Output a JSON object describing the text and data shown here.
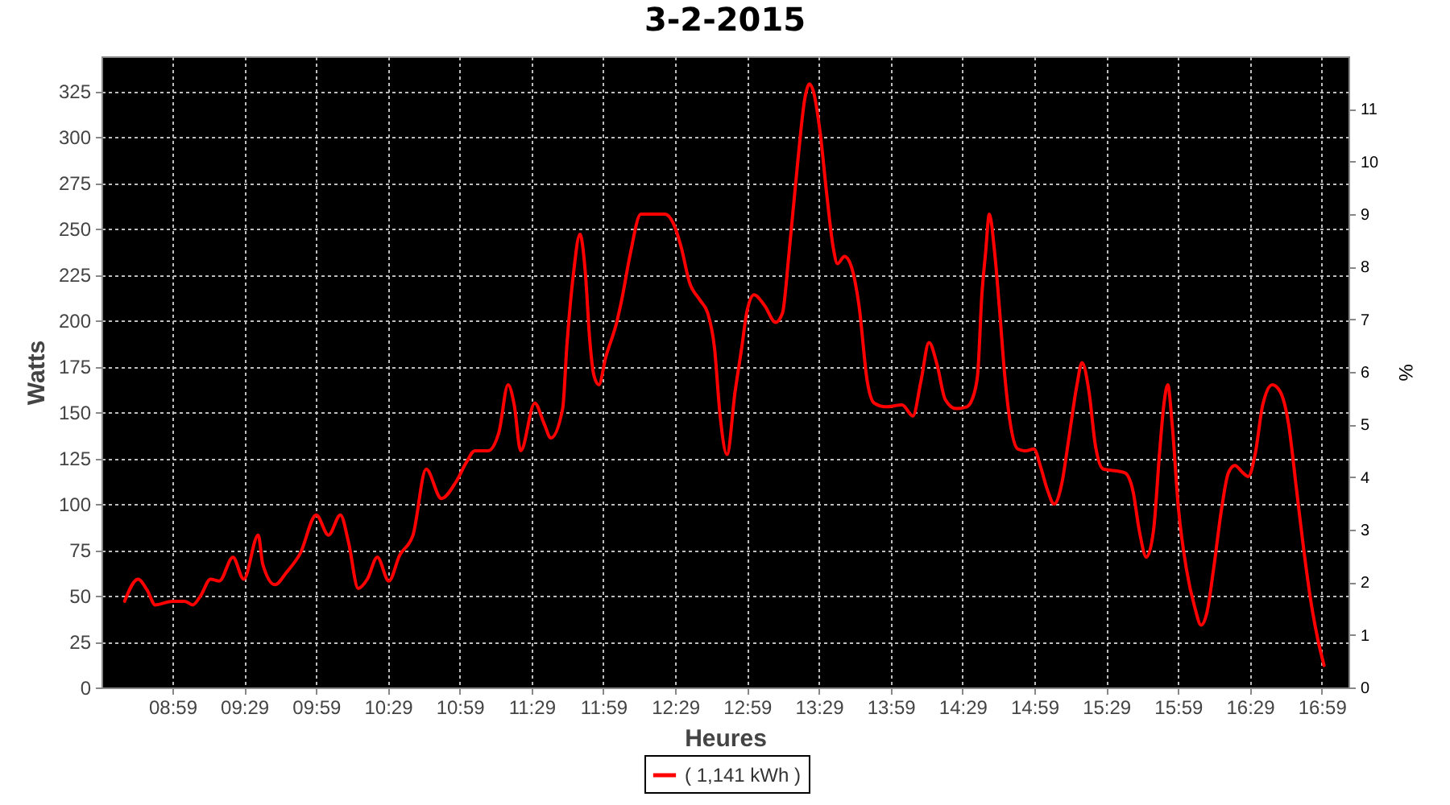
{
  "chart_data": {
    "type": "line",
    "title": "3-2-2015",
    "xlabel": "Heures",
    "ylabel": "Watts",
    "y2label": "%",
    "x": [
      8.651,
      8.744,
      8.808,
      8.864,
      8.983,
      9.07,
      9.125,
      9.18,
      9.249,
      9.31,
      9.405,
      9.48,
      9.581,
      9.613,
      9.697,
      9.78,
      9.873,
      9.985,
      10.07,
      10.153,
      10.21,
      10.277,
      10.34,
      10.41,
      10.49,
      10.565,
      10.658,
      10.75,
      10.856,
      10.957,
      11.032,
      11.088,
      11.18,
      11.256,
      11.32,
      11.363,
      11.408,
      11.506,
      11.57,
      11.618,
      11.7,
      11.73,
      11.776,
      11.82,
      11.858,
      11.888,
      11.918,
      11.952,
      12.0,
      12.076,
      12.113,
      12.17,
      12.244,
      12.32,
      12.413,
      12.47,
      12.525,
      12.582,
      12.657,
      12.71,
      12.757,
      12.795,
      12.844,
      12.9,
      12.946,
      12.983,
      13.032,
      13.107,
      13.182,
      13.23,
      13.276,
      13.332,
      13.388,
      13.418,
      13.445,
      13.493,
      13.538,
      13.583,
      13.613,
      13.662,
      13.707,
      13.763,
      13.82,
      13.868,
      13.95,
      14.063,
      14.138,
      14.194,
      14.25,
      14.306,
      14.363,
      14.438,
      14.513,
      14.55,
      14.588,
      14.618,
      14.644,
      14.67,
      14.707,
      14.745,
      14.774,
      14.812,
      14.868,
      14.924,
      14.98,
      15.028,
      15.073,
      15.121,
      15.174,
      15.222,
      15.278,
      15.315,
      15.364,
      15.408,
      15.464,
      15.558,
      15.614,
      15.67,
      15.715,
      15.763,
      15.812,
      15.856,
      15.886,
      15.912,
      15.942,
      15.987,
      16.043,
      16.099,
      16.144,
      16.185,
      16.23,
      16.286,
      16.334,
      16.379,
      16.435,
      16.472,
      16.52,
      16.573,
      16.64,
      16.696,
      16.752,
      16.808,
      16.857,
      16.908,
      16.957,
      17.0
    ],
    "series": [
      {
        "name": "( 1,141 kWh )",
        "color": "#ff0000",
        "values": [
          47,
          59,
          53,
          45,
          47,
          47,
          45,
          50,
          59,
          58,
          71,
          59,
          83,
          67,
          56,
          63,
          73,
          94,
          83,
          94,
          79,
          54,
          59,
          71,
          58,
          72,
          83,
          119,
          103,
          112,
          123,
          129,
          129,
          139,
          165,
          154,
          129,
          155,
          144,
          136,
          152,
          187,
          226,
          247,
          226,
          190,
          170,
          165,
          180,
          199,
          212,
          236,
          258,
          258,
          258,
          253,
          240,
          221,
          211,
          204,
          185,
          149,
          127,
          161,
          185,
          205,
          214,
          208,
          199,
          204,
          237,
          283,
          322,
          329,
          325,
          302,
          269,
          240,
          231,
          235,
          230,
          208,
          167,
          155,
          153,
          154,
          148,
          167,
          188,
          176,
          157,
          152,
          153,
          157,
          170,
          214,
          237,
          258,
          237,
          202,
          173,
          146,
          130,
          129,
          130,
          120,
          108,
          100,
          111,
          135,
          164,
          177,
          161,
          132,
          119,
          118,
          117,
          107,
          85,
          71,
          85,
          129,
          155,
          165,
          144,
          97,
          64,
          44,
          34,
          41,
          64,
          97,
          117,
          121,
          117,
          115,
          127,
          154,
          165,
          161,
          144,
          108,
          76,
          47,
          26,
          12
        ]
      }
    ],
    "xlim": [
      8.49,
      17.17
    ],
    "xticks": [
      {
        "value": 8.9833,
        "label": "08:59"
      },
      {
        "value": 9.4833,
        "label": "09:29"
      },
      {
        "value": 9.9833,
        "label": "09:59"
      },
      {
        "value": 10.4833,
        "label": "10:29"
      },
      {
        "value": 10.9833,
        "label": "10:59"
      },
      {
        "value": 11.4833,
        "label": "11:29"
      },
      {
        "value": 11.9833,
        "label": "11:59"
      },
      {
        "value": 12.4833,
        "label": "12:29"
      },
      {
        "value": 12.9833,
        "label": "12:59"
      },
      {
        "value": 13.4833,
        "label": "13:29"
      },
      {
        "value": 13.9833,
        "label": "13:59"
      },
      {
        "value": 14.4833,
        "label": "14:29"
      },
      {
        "value": 14.9833,
        "label": "14:59"
      },
      {
        "value": 15.4833,
        "label": "15:29"
      },
      {
        "value": 15.9833,
        "label": "15:59"
      },
      {
        "value": 16.4833,
        "label": "16:29"
      },
      {
        "value": 16.9833,
        "label": "16:59"
      }
    ],
    "ylim": [
      0,
      344
    ],
    "yticks": [
      0,
      25,
      50,
      75,
      100,
      125,
      150,
      175,
      200,
      225,
      250,
      275,
      300,
      325
    ],
    "y2lim": [
      0,
      12
    ],
    "y2ticks": [
      0,
      1,
      2,
      3,
      4,
      5,
      6,
      7,
      8,
      9,
      10,
      11
    ],
    "grid": true,
    "legend": "bottom",
    "line_style": "solid"
  }
}
